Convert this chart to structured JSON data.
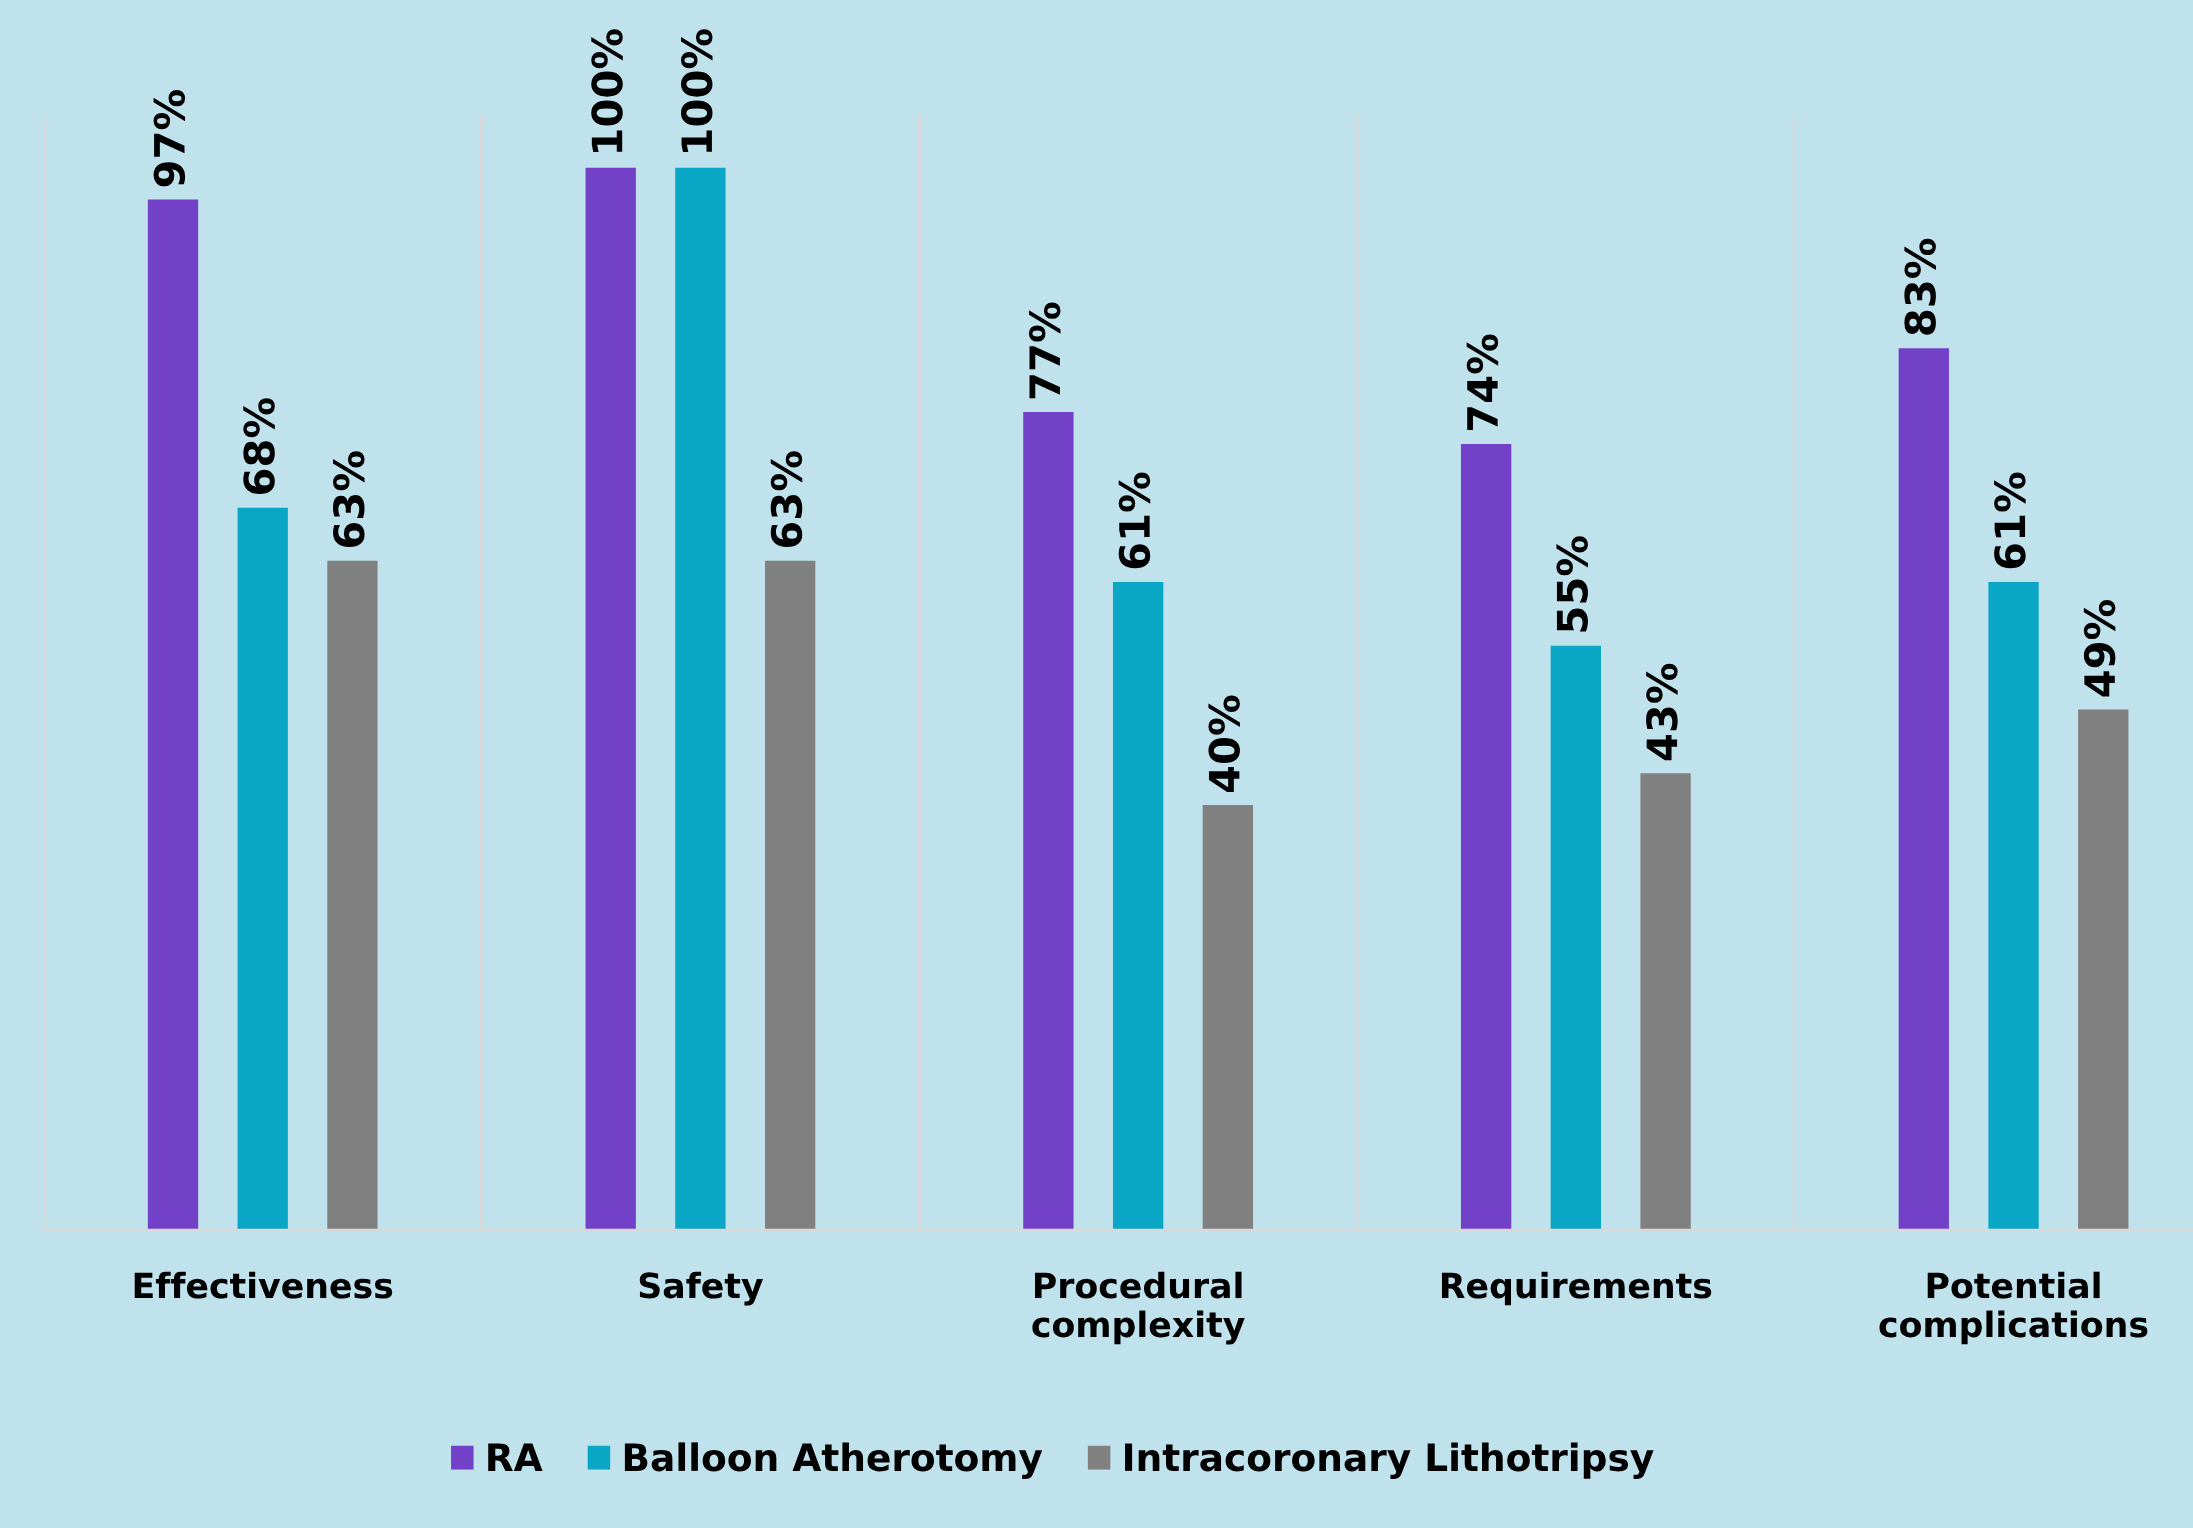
{
  "chart_data": {
    "type": "bar",
    "categories": [
      "Effectiveness",
      "Safety",
      "Procedural\ncomplexity",
      "Requirements",
      "Potential\ncomplications"
    ],
    "series": [
      {
        "name": "RA",
        "color": "#7340c8",
        "values": [
          97,
          100,
          77,
          74,
          83
        ],
        "value_labels": [
          "97%",
          "100%",
          "77%",
          "74%",
          "83%"
        ]
      },
      {
        "name": "Balloon Atherotomy",
        "color": "#09a6c6",
        "values": [
          68,
          100,
          61,
          55,
          61
        ],
        "value_labels": [
          "68%",
          "100%",
          "61%",
          "55%",
          "61%"
        ]
      },
      {
        "name": "Intracoronary Lithotripsy",
        "color": "#808080",
        "values": [
          63,
          63,
          40,
          43,
          49
        ],
        "value_labels": [
          "63%",
          "63%",
          "40%",
          "43%",
          "49%"
        ]
      }
    ],
    "grid": "x",
    "legend": "bottom"
  }
}
